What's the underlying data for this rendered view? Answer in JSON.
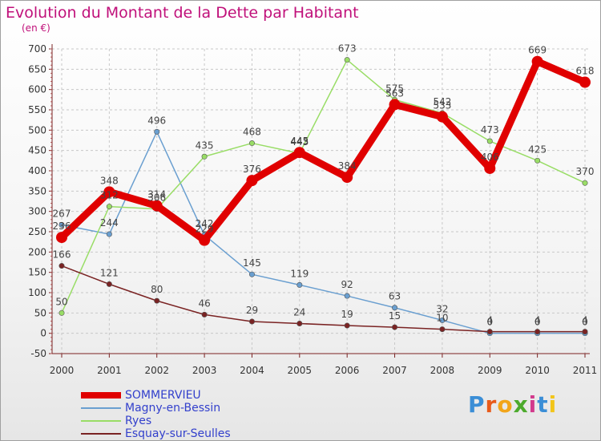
{
  "title": "Evolution du Montant de la Dette par Habitant",
  "subtitle": "(en €)",
  "brand": {
    "letters": [
      "P",
      "r",
      "o",
      "x",
      "i",
      "t",
      "i"
    ],
    "colors": [
      "#3b8ed6",
      "#e85a1a",
      "#f2a51a",
      "#4caa2c",
      "#d23a8c",
      "#3b8ed6",
      "#f2c51a"
    ]
  },
  "chart_data": {
    "type": "line",
    "title": "Evolution du Montant de la Dette par Habitant",
    "subtitle": "(en €)",
    "x": [
      "2000",
      "2001",
      "2002",
      "2003",
      "2004",
      "2005",
      "2006",
      "2007",
      "2008",
      "2009",
      "2010",
      "2011"
    ],
    "ylim": [
      -50,
      700
    ],
    "yticks": [
      -50,
      0,
      50,
      100,
      150,
      200,
      250,
      300,
      350,
      400,
      450,
      500,
      550,
      600,
      650,
      700
    ],
    "grid": true,
    "legend_position": "bottom-left",
    "series": [
      {
        "name": "SOMMERVIEU",
        "color": "#e00000",
        "values": [
          236,
          348,
          314,
          229,
          376,
          445,
          384,
          563,
          533,
          406,
          669,
          618
        ]
      },
      {
        "name": "Magny-en-Bessin",
        "color": "#6a9fd0",
        "values": [
          267,
          244,
          496,
          242,
          145,
          119,
          92,
          63,
          32,
          0,
          0,
          0
        ]
      },
      {
        "name": "Ryes",
        "color": "#99dd66",
        "values": [
          50,
          312,
          306,
          435,
          468,
          443,
          673,
          575,
          542,
          473,
          425,
          370
        ]
      },
      {
        "name": "Esquay-sur-Seulles",
        "color": "#7a2323",
        "values": [
          166,
          121,
          80,
          46,
          29,
          24,
          19,
          15,
          10,
          4,
          4,
          4
        ]
      }
    ]
  }
}
